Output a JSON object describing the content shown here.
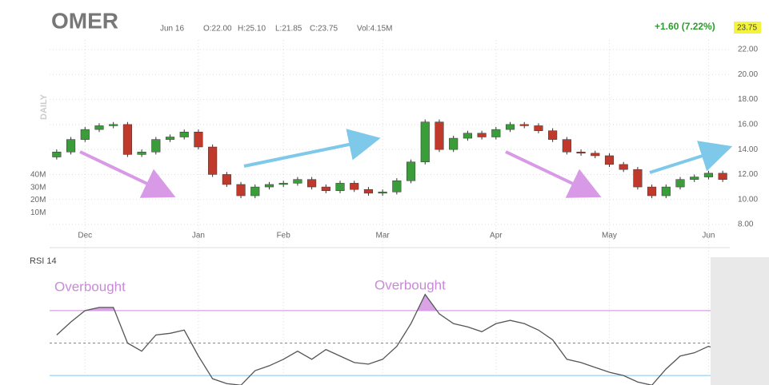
{
  "chart_data": {
    "type": "candlestick",
    "title": "OMER",
    "period_label": "DAILY",
    "quote": {
      "date": "Jun 16",
      "open": "O:22.00",
      "high": "H:25.10",
      "low": "L:21.85",
      "close": "C:23.75",
      "volume": "Vol:4.15M",
      "change": "+1.60 (7.22%)",
      "last": "23.75"
    },
    "categories": [
      null,
      null,
      "Dec",
      null,
      null,
      null,
      null,
      null,
      null,
      null,
      "Jan",
      null,
      null,
      null,
      null,
      null,
      "Feb",
      null,
      null,
      null,
      null,
      null,
      null,
      "Mar",
      null,
      null,
      null,
      null,
      null,
      null,
      null,
      "Apr",
      null,
      null,
      null,
      null,
      null,
      null,
      null,
      "May",
      null,
      null,
      null,
      null,
      null,
      null,
      "Jun",
      null
    ],
    "open": [
      13.4,
      13.8,
      14.8,
      15.6,
      15.9,
      16.0,
      13.6,
      13.8,
      14.8,
      15.0,
      15.4,
      14.2,
      12.0,
      11.2,
      10.3,
      11.0,
      11.2,
      11.3,
      11.6,
      11.0,
      10.7,
      11.3,
      10.8,
      10.5,
      10.6,
      11.5,
      13.0,
      16.2,
      14.0,
      14.9,
      15.3,
      15.0,
      15.6,
      16.0,
      15.9,
      15.5,
      14.8,
      13.8,
      13.7,
      13.5,
      12.8,
      12.4,
      11.0,
      10.3,
      11.0,
      11.6,
      11.8,
      12.1
    ],
    "high": [
      14.0,
      15.0,
      15.8,
      16.1,
      16.2,
      16.2,
      14.0,
      15.0,
      15.2,
      15.6,
      15.6,
      14.4,
      12.2,
      11.4,
      11.2,
      11.4,
      11.5,
      11.8,
      11.8,
      11.2,
      11.5,
      11.5,
      11.0,
      10.8,
      11.7,
      13.2,
      16.4,
      16.4,
      15.1,
      15.5,
      15.5,
      15.8,
      16.2,
      16.2,
      16.1,
      15.7,
      15.0,
      14.0,
      13.9,
      13.7,
      13.0,
      12.6,
      11.2,
      11.2,
      11.8,
      12.0,
      12.3,
      12.3
    ],
    "low": [
      13.2,
      13.6,
      14.6,
      15.4,
      15.7,
      13.4,
      13.4,
      13.6,
      14.6,
      14.8,
      14.0,
      11.8,
      11.0,
      10.1,
      10.1,
      10.8,
      11.0,
      11.1,
      10.8,
      10.5,
      10.5,
      10.6,
      10.3,
      10.3,
      10.4,
      11.3,
      12.8,
      13.8,
      13.8,
      14.7,
      14.8,
      14.8,
      15.4,
      15.7,
      15.3,
      14.6,
      13.6,
      13.5,
      13.3,
      12.6,
      12.2,
      10.8,
      10.1,
      10.1,
      10.8,
      11.4,
      11.6,
      11.4
    ],
    "close": [
      13.8,
      14.8,
      15.6,
      15.9,
      16.0,
      13.6,
      13.8,
      14.8,
      15.0,
      15.4,
      14.2,
      12.0,
      11.2,
      10.3,
      11.0,
      11.2,
      11.3,
      11.6,
      11.0,
      10.7,
      11.3,
      10.8,
      10.5,
      10.6,
      11.5,
      13.0,
      16.2,
      14.0,
      14.9,
      15.3,
      15.0,
      15.6,
      16.0,
      15.9,
      15.5,
      14.8,
      13.8,
      13.7,
      13.5,
      12.8,
      12.4,
      11.0,
      10.3,
      11.0,
      11.6,
      11.8,
      12.1,
      11.6
    ],
    "up_color": "#3a9d3a",
    "down_color": "#c0392b",
    "ylim": [
      8,
      22
    ],
    "yticks": [
      {
        "value": 8,
        "label": "8.00"
      },
      {
        "value": 10,
        "label": "10.00"
      },
      {
        "value": 12,
        "label": "12.00"
      },
      {
        "value": 14,
        "label": "14.00"
      },
      {
        "value": 16,
        "label": "16.00"
      },
      {
        "value": 18,
        "label": "18.00"
      },
      {
        "value": 20,
        "label": "20.00"
      },
      {
        "value": 22,
        "label": "22.00"
      }
    ],
    "y2lim": [
      0,
      40000000
    ],
    "y2ticks": [
      {
        "value": 10000000,
        "label": "10M"
      },
      {
        "value": 20000000,
        "label": "20M"
      },
      {
        "value": 30000000,
        "label": "30M"
      },
      {
        "value": 40000000,
        "label": "40M"
      }
    ],
    "grid": true,
    "rsi": {
      "title": "RSI 14",
      "values": [
        55,
        63,
        70,
        72,
        72,
        50,
        45,
        55,
        56,
        58,
        42,
        28,
        25,
        24,
        33,
        36,
        40,
        45,
        40,
        46,
        42,
        38,
        37,
        40,
        48,
        62,
        80,
        68,
        62,
        60,
        57,
        62,
        64,
        62,
        58,
        52,
        40,
        38,
        35,
        32,
        30,
        26,
        24,
        34,
        42,
        44,
        48,
        45
      ],
      "ylim": [
        0,
        100
      ],
      "levels": [
        70,
        50,
        30
      ],
      "color": "#555555",
      "overbought_color": "#d9a3e6"
    },
    "annotations": [
      "Overbought",
      "Overbought"
    ]
  }
}
